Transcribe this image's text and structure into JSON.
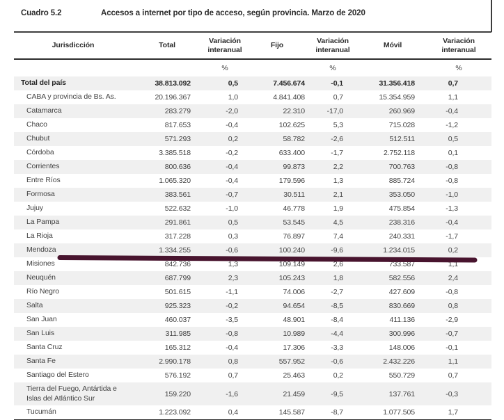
{
  "header": {
    "label": "Cuadro 5.2",
    "title": "Accesos a internet por tipo de acceso, según provincia. Marzo de 2020"
  },
  "table": {
    "columns": [
      "Jurisdicción",
      "Total",
      "Variación interanual",
      "Fijo",
      "Variación interanual",
      "Móvil",
      "Variación interanual"
    ],
    "units": [
      "%",
      "%",
      "%"
    ],
    "stripe_color": "#f0f0f0",
    "rows": [
      {
        "name": "Total del país",
        "bold": true,
        "values": [
          "38.813.092",
          "0,5",
          "7.456.674",
          "-0,1",
          "31.356.418",
          "0,7"
        ]
      },
      {
        "name": "CABA y provincia de Bs. As.",
        "values": [
          "20.196.367",
          "1,0",
          "4.841.408",
          "0,7",
          "15.354.959",
          "1,1"
        ]
      },
      {
        "name": "Catamarca",
        "values": [
          "283.279",
          "-2,0",
          "22.310",
          "-17,0",
          "260.969",
          "-0,4"
        ]
      },
      {
        "name": "Chaco",
        "values": [
          "817.653",
          "-0,4",
          "102.625",
          "5,3",
          "715.028",
          "-1,2"
        ]
      },
      {
        "name": "Chubut",
        "values": [
          "571.293",
          "0,2",
          "58.782",
          "-2,6",
          "512.511",
          "0,5"
        ]
      },
      {
        "name": "Córdoba",
        "values": [
          "3.385.518",
          "-0,2",
          "633.400",
          "-1,7",
          "2.752.118",
          "0,1"
        ]
      },
      {
        "name": "Corrientes",
        "values": [
          "800.636",
          "-0,4",
          "99.873",
          "2,2",
          "700.763",
          "-0,8"
        ]
      },
      {
        "name": "Entre Ríos",
        "values": [
          "1.065.320",
          "-0,4",
          "179.596",
          "1,3",
          "885.724",
          "-0,8"
        ]
      },
      {
        "name": "Formosa",
        "values": [
          "383.561",
          "-0,7",
          "30.511",
          "2,1",
          "353.050",
          "-1,0"
        ]
      },
      {
        "name": "Jujuy",
        "values": [
          "522.632",
          "-1,0",
          "46.778",
          "1,9",
          "475.854",
          "-1,3"
        ]
      },
      {
        "name": "La Pampa",
        "values": [
          "291.861",
          "0,5",
          "53.545",
          "4,5",
          "238.316",
          "-0,4"
        ]
      },
      {
        "name": "La Rioja",
        "values": [
          "317.228",
          "0,3",
          "76.897",
          "7,4",
          "240.331",
          "-1,7"
        ]
      },
      {
        "name": "Mendoza",
        "highlighted": true,
        "values": [
          "1.334.255",
          "-0,6",
          "100.240",
          "-9,6",
          "1.234.015",
          "0,2"
        ]
      },
      {
        "name": "Misiones",
        "values": [
          "842.736",
          "1,3",
          "109.149",
          "2,6",
          "733.587",
          "1,1"
        ]
      },
      {
        "name": "Neuquén",
        "values": [
          "687.799",
          "2,3",
          "105.243",
          "1,8",
          "582.556",
          "2,4"
        ]
      },
      {
        "name": "Río Negro",
        "values": [
          "501.615",
          "-1,1",
          "74.006",
          "-2,7",
          "427.609",
          "-0,8"
        ]
      },
      {
        "name": "Salta",
        "values": [
          "925.323",
          "-0,2",
          "94.654",
          "-8,5",
          "830.669",
          "0,8"
        ]
      },
      {
        "name": "San Juan",
        "values": [
          "460.037",
          "-3,5",
          "48.901",
          "-8,4",
          "411.136",
          "-2,9"
        ]
      },
      {
        "name": "San Luis",
        "values": [
          "311.985",
          "-0,8",
          "10.989",
          "-4,4",
          "300.996",
          "-0,7"
        ]
      },
      {
        "name": "Santa Cruz",
        "values": [
          "165.312",
          "-0,4",
          "17.306",
          "-3,3",
          "148.006",
          "-0,1"
        ]
      },
      {
        "name": "Santa Fe",
        "values": [
          "2.990.178",
          "0,8",
          "557.952",
          "-0,6",
          "2.432.226",
          "1,1"
        ]
      },
      {
        "name": "Santiago del Estero",
        "values": [
          "576.192",
          "0,7",
          "25.463",
          "0,2",
          "550.729",
          "0,7"
        ]
      },
      {
        "name": "Tierra del Fuego, Antártida e Islas del Atlántico Sur",
        "tall": true,
        "values": [
          "159.220",
          "-1,6",
          "21.459",
          "-9,5",
          "137.761",
          "-0,3"
        ]
      },
      {
        "name": "Tucumán",
        "values": [
          "1.223.092",
          "0,4",
          "145.587",
          "-8,7",
          "1.077.505",
          "1,7"
        ]
      }
    ]
  },
  "annotation": {
    "type": "marker-underline",
    "highlighted_row": "Mendoza",
    "color": "#48142e"
  }
}
